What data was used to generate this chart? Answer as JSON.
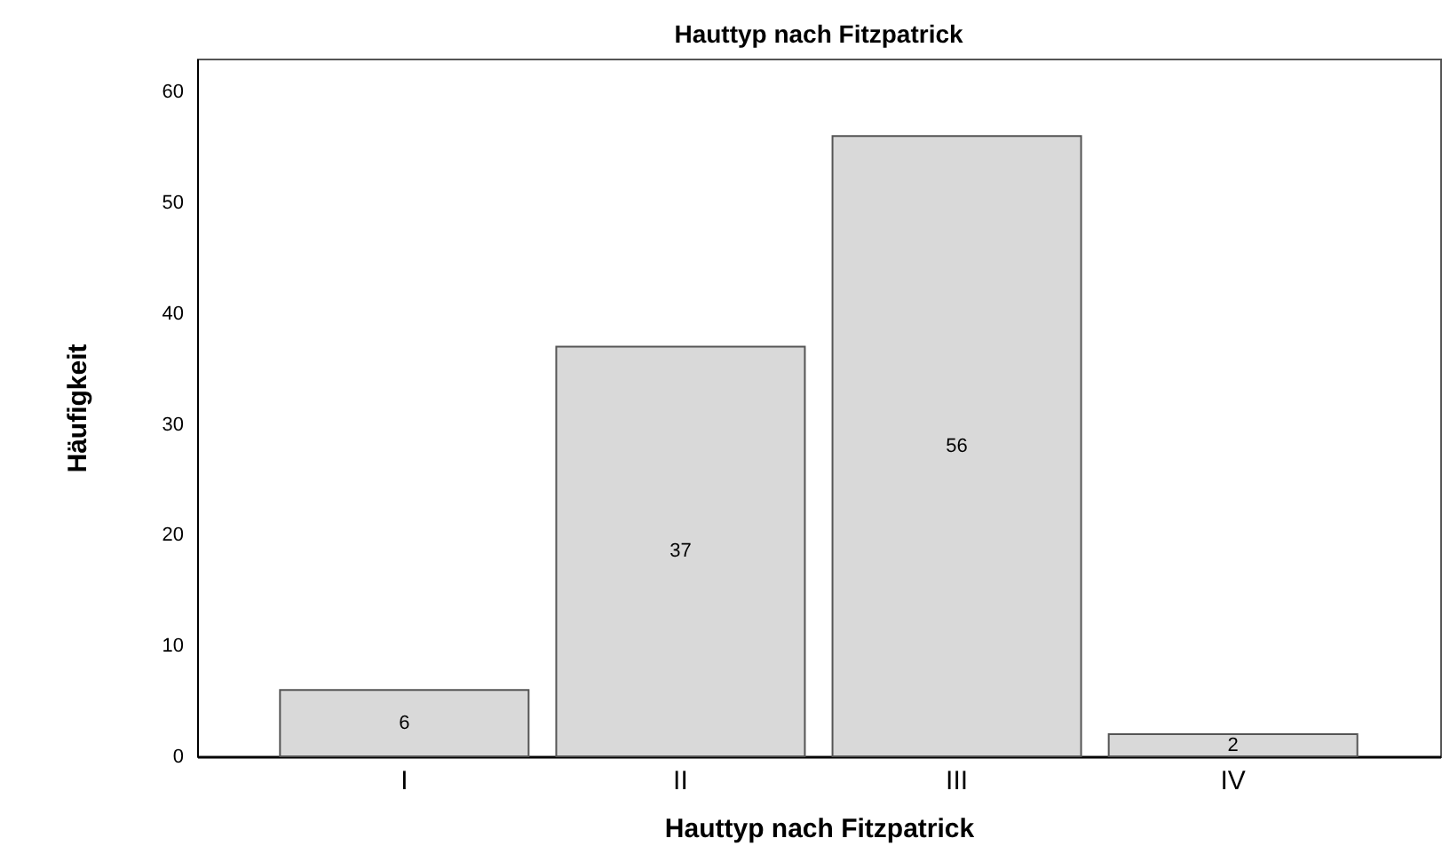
{
  "chart_data": {
    "type": "bar",
    "title": "Hauttyp nach Fitzpatrick",
    "xlabel": "Hauttyp nach Fitzpatrick",
    "ylabel": "Häufigkeit",
    "categories": [
      "I",
      "II",
      "III",
      "IV"
    ],
    "values": [
      6,
      37,
      56,
      2
    ],
    "color": "#d9d9d9",
    "ylim": [
      0,
      63
    ],
    "yticks": [
      0,
      10,
      20,
      30,
      40,
      50,
      60
    ],
    "grid": false,
    "data_labels": true
  }
}
